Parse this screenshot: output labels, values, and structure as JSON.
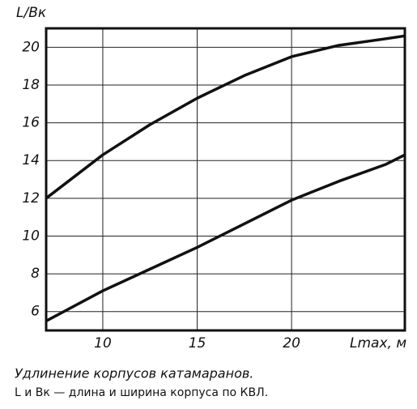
{
  "chart_data": {
    "type": "line",
    "y_label": "L/Bк",
    "x_label": "Lmax, м",
    "caption": "Удлинение корпусов катамаранов.",
    "note": "L и Bк — длина и ширина корпуса по КВЛ.",
    "x": [
      7,
      10,
      12.5,
      15,
      17.5,
      20,
      22.5,
      25,
      26
    ],
    "series": [
      {
        "color": "#111111",
        "values": [
          12.0,
          14.3,
          15.9,
          17.3,
          18.5,
          19.5,
          20.1,
          20.45,
          20.6
        ]
      },
      {
        "color": "#111111",
        "values": [
          5.5,
          7.1,
          8.25,
          9.4,
          10.65,
          11.9,
          12.9,
          13.8,
          14.3
        ]
      }
    ],
    "xlim": [
      7,
      26
    ],
    "xticks": [
      10,
      15,
      20
    ],
    "ylim": [
      5,
      21
    ],
    "yticks": [
      6,
      8,
      10,
      12,
      14,
      16,
      18,
      20
    ],
    "grid": true
  }
}
